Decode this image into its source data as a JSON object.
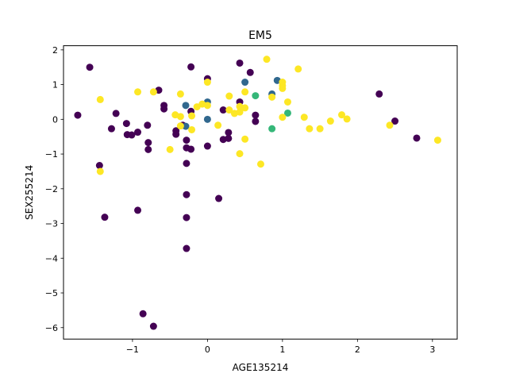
{
  "chart_data": {
    "type": "scatter",
    "title": "EM5",
    "xlabel": "AGE135214",
    "ylabel": "SEX255214",
    "xlim": [
      -1.92,
      3.33
    ],
    "ylim": [
      -6.33,
      2.12
    ],
    "xticks": [
      -1,
      0,
      1,
      2,
      3
    ],
    "yticks": [
      2,
      1,
      0,
      -1,
      -2,
      -3,
      -4,
      -5,
      -6
    ],
    "xtick_labels": [
      "−1",
      "0",
      "1",
      "2",
      "3"
    ],
    "ytick_labels": [
      "2",
      "1",
      "0",
      "−1",
      "−2",
      "−3",
      "−4",
      "−5",
      "−6"
    ],
    "grid": false,
    "legend": false,
    "cluster_colors": [
      "#440154",
      "#31688e",
      "#35b779",
      "#fde725"
    ],
    "series": [
      {
        "cluster": 0,
        "points": [
          [
            -1.73,
            0.12
          ],
          [
            -1.57,
            1.5
          ],
          [
            -1.44,
            -1.33
          ],
          [
            -1.37,
            -2.82
          ],
          [
            -1.28,
            -0.27
          ],
          [
            -1.22,
            0.17
          ],
          [
            -1.08,
            -0.12
          ],
          [
            -1.07,
            -0.44
          ],
          [
            -1.01,
            -0.45
          ],
          [
            -0.93,
            -0.37
          ],
          [
            -0.93,
            -2.62
          ],
          [
            -0.86,
            -5.6
          ],
          [
            -0.8,
            -0.17
          ],
          [
            -0.79,
            -0.67
          ],
          [
            -0.79,
            -0.87
          ],
          [
            -0.65,
            0.84
          ],
          [
            -0.58,
            0.4
          ],
          [
            -0.58,
            0.3
          ],
          [
            -0.42,
            -0.33
          ],
          [
            -0.42,
            -0.43
          ],
          [
            -0.33,
            -0.17
          ],
          [
            -0.28,
            -0.6
          ],
          [
            -0.28,
            -0.82
          ],
          [
            -0.28,
            -1.27
          ],
          [
            -0.28,
            -2.17
          ],
          [
            -0.28,
            -2.83
          ],
          [
            -0.28,
            -3.72
          ],
          [
            -0.22,
            -0.86
          ],
          [
            -0.22,
            0.23
          ],
          [
            -0.22,
            1.51
          ],
          [
            -0.72,
            -5.96
          ],
          [
            0.0,
            1.17
          ],
          [
            0.0,
            -0.77
          ],
          [
            0.15,
            -2.28
          ],
          [
            0.21,
            -0.58
          ],
          [
            0.21,
            0.27
          ],
          [
            0.28,
            -0.38
          ],
          [
            0.28,
            -0.55
          ],
          [
            0.43,
            1.62
          ],
          [
            0.43,
            0.5
          ],
          [
            0.57,
            1.35
          ],
          [
            0.64,
            0.12
          ],
          [
            0.64,
            -0.06
          ],
          [
            2.29,
            0.73
          ],
          [
            2.5,
            -0.05
          ],
          [
            2.79,
            -0.54
          ]
        ]
      },
      {
        "cluster": 1,
        "points": [
          [
            -0.29,
            0.4
          ],
          [
            -0.29,
            -0.2
          ],
          [
            0.0,
            0.5
          ],
          [
            0.0,
            0.0
          ],
          [
            0.5,
            1.07
          ],
          [
            0.93,
            1.12
          ],
          [
            0.86,
            0.73
          ]
        ]
      },
      {
        "cluster": 2,
        "points": [
          [
            0.64,
            0.68
          ],
          [
            0.86,
            -0.27
          ],
          [
            1.07,
            0.18
          ]
        ]
      },
      {
        "cluster": 3,
        "points": [
          [
            -1.43,
            0.57
          ],
          [
            -1.43,
            -1.5
          ],
          [
            -0.93,
            0.79
          ],
          [
            -0.72,
            0.79
          ],
          [
            -0.5,
            -0.87
          ],
          [
            -0.43,
            0.13
          ],
          [
            -0.36,
            0.73
          ],
          [
            -0.36,
            0.08
          ],
          [
            -0.36,
            -0.19
          ],
          [
            -0.21,
            -0.3
          ],
          [
            -0.21,
            0.1
          ],
          [
            -0.14,
            0.36
          ],
          [
            -0.07,
            0.44
          ],
          [
            0.0,
            1.07
          ],
          [
            0.0,
            0.4
          ],
          [
            0.14,
            -0.17
          ],
          [
            0.29,
            0.67
          ],
          [
            0.29,
            0.27
          ],
          [
            0.36,
            0.17
          ],
          [
            0.43,
            0.21
          ],
          [
            0.43,
            0.37
          ],
          [
            0.43,
            -0.99
          ],
          [
            0.5,
            0.79
          ],
          [
            0.5,
            0.33
          ],
          [
            0.5,
            -0.57
          ],
          [
            0.71,
            -1.29
          ],
          [
            0.79,
            1.73
          ],
          [
            0.86,
            0.64
          ],
          [
            1.0,
            1.07
          ],
          [
            1.0,
            0.97
          ],
          [
            1.0,
            0.89
          ],
          [
            1.0,
            0.06
          ],
          [
            1.07,
            0.5
          ],
          [
            1.21,
            1.45
          ],
          [
            1.29,
            0.06
          ],
          [
            1.36,
            -0.27
          ],
          [
            1.5,
            -0.27
          ],
          [
            1.64,
            -0.05
          ],
          [
            1.79,
            0.13
          ],
          [
            1.86,
            0.01
          ],
          [
            2.43,
            -0.17
          ],
          [
            3.07,
            -0.6
          ]
        ]
      }
    ]
  }
}
